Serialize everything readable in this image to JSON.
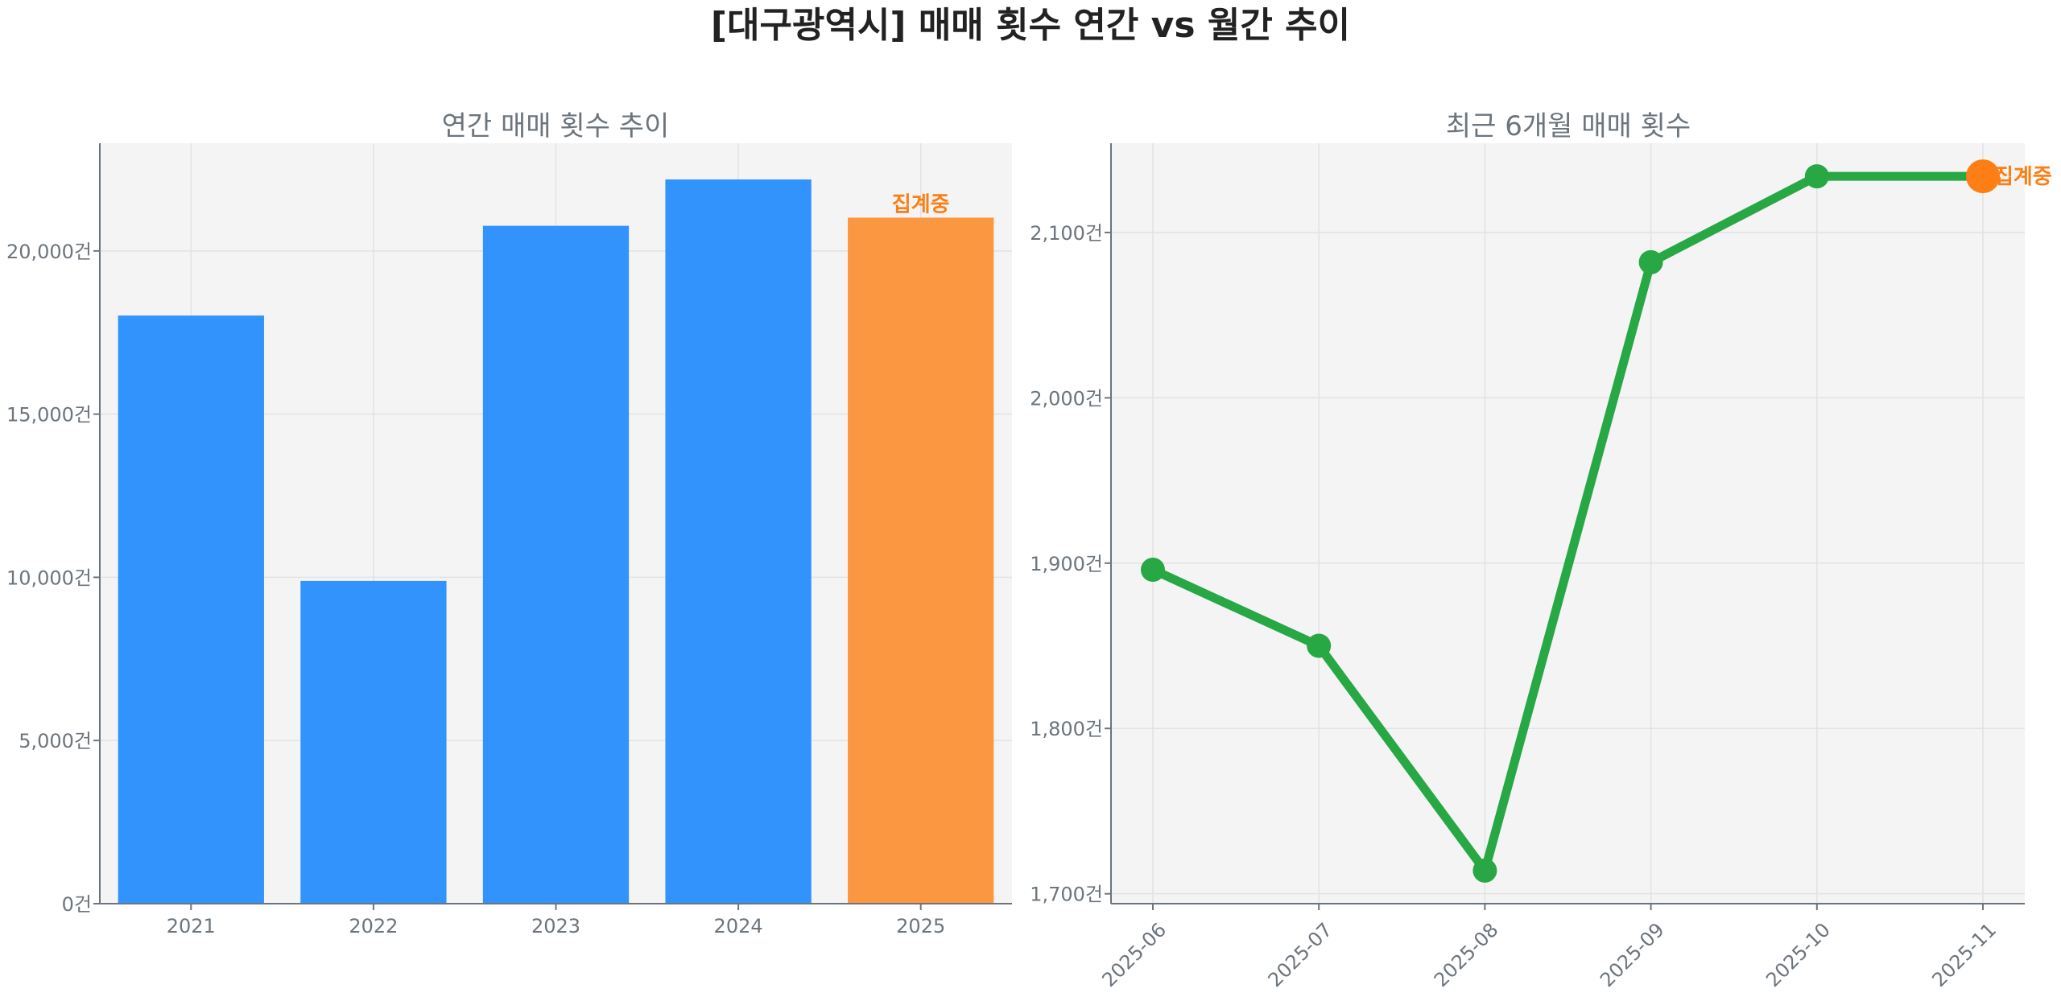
{
  "title": "[대구광역시] 매매 횟수 연간 vs 월간 추이",
  "chart_data": [
    {
      "type": "bar",
      "title": "연간 매매 횟수 추이",
      "categories": [
        "2021",
        "2022",
        "2023",
        "2024",
        "2025"
      ],
      "values": [
        18020,
        9890,
        20770,
        22190,
        21020
      ],
      "bar_colors": [
        "#3193fb",
        "#3193fb",
        "#3193fb",
        "#3193fb",
        "#fa9740"
      ],
      "annotations": [
        {
          "category": "2025",
          "text": "집계중",
          "color": "#fd7e14"
        }
      ],
      "yticks": [
        0,
        5000,
        10000,
        15000,
        20000
      ],
      "ytick_labels": [
        "0건",
        "5,000건",
        "10,000건",
        "15,000건",
        "20,000건"
      ],
      "ylim": [
        0,
        23300
      ],
      "grid": true,
      "background": "#f4f4f4"
    },
    {
      "type": "line",
      "title": "최근 6개월 매매 횟수",
      "x": [
        "2025-06",
        "2025-07",
        "2025-08",
        "2025-09",
        "2025-10",
        "2025-11"
      ],
      "values": [
        1896,
        1850,
        1714,
        2082,
        2134,
        2134
      ],
      "line_color": "#28a745",
      "highlight": {
        "x": "2025-11",
        "color": "#fd7e14",
        "text": "집계중"
      },
      "yticks": [
        1700,
        1800,
        1900,
        2000,
        2100
      ],
      "ytick_labels": [
        "1,700건",
        "1,800건",
        "1,900건",
        "2,000건",
        "2,100건"
      ],
      "ylim": [
        1694,
        2154
      ],
      "grid": true,
      "background": "#f4f4f4"
    }
  ]
}
